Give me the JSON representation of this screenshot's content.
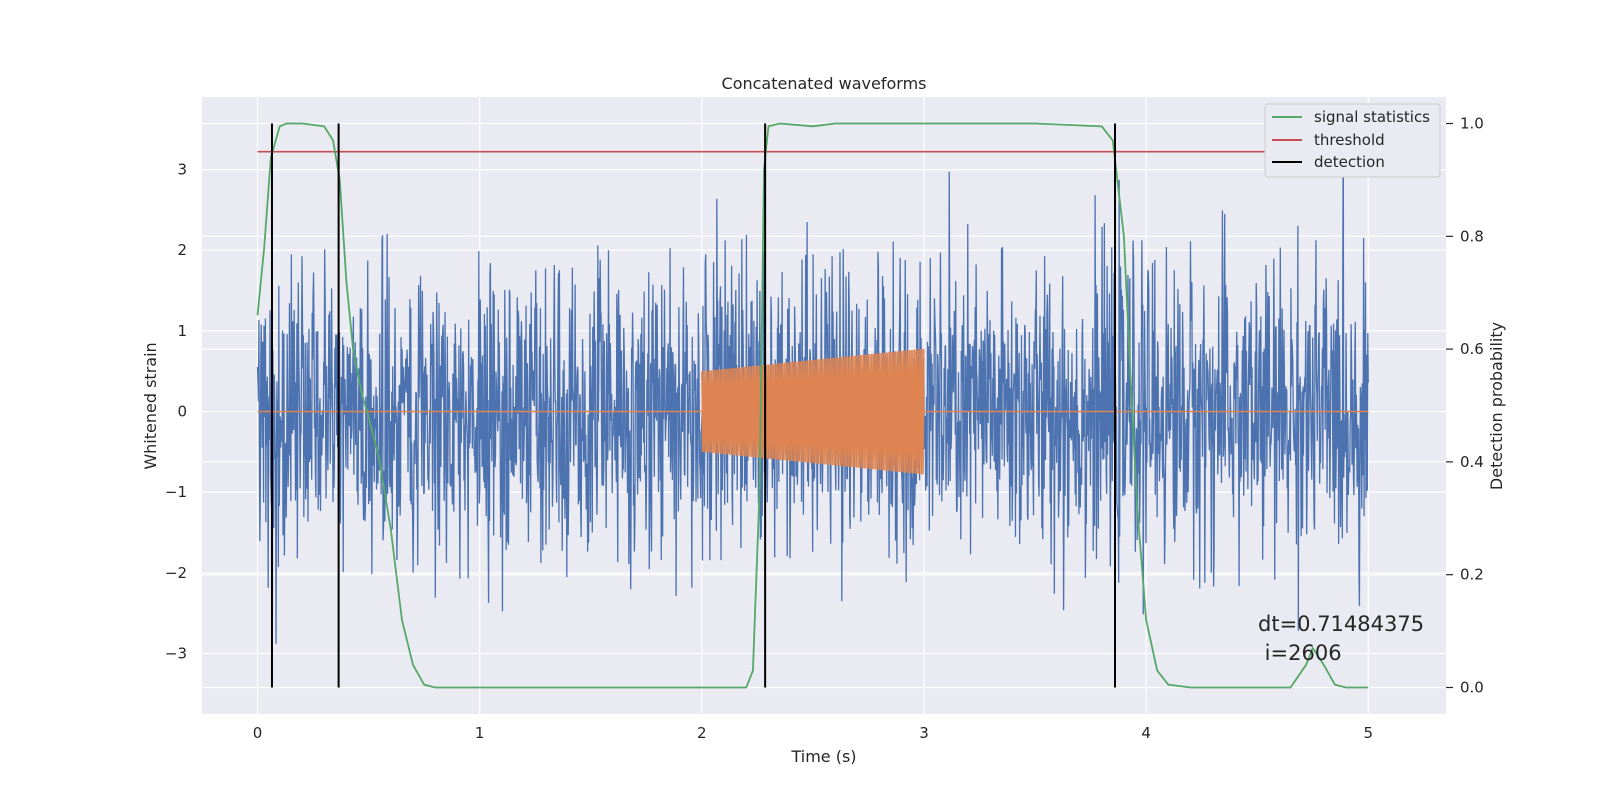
{
  "chart_data": {
    "type": "line",
    "title": "Concatenated waveforms",
    "xlabel": "Time (s)",
    "ylabel": "Whitened strain",
    "y2label": "Detection probability",
    "xlim": [
      -0.25,
      5.35
    ],
    "ylim": [
      -3.75,
      3.9
    ],
    "y2lim": [
      -0.047,
      1.047
    ],
    "xticks": [
      0,
      1,
      2,
      3,
      4,
      5
    ],
    "xtick_labels": [
      "0",
      "1",
      "2",
      "3",
      "4",
      "5"
    ],
    "yticks": [
      -3,
      -2,
      -1,
      0,
      1,
      2,
      3
    ],
    "ytick_labels": [
      "−3",
      "−2",
      "−1",
      "0",
      "1",
      "2",
      "3"
    ],
    "y2ticks": [
      0.0,
      0.2,
      0.4,
      0.6,
      0.8,
      1.0
    ],
    "y2tick_labels": [
      "0.0",
      "0.2",
      "0.4",
      "0.6",
      "0.8",
      "1.0"
    ],
    "grid": true,
    "legend_position": "top-right",
    "series": [
      {
        "name": "",
        "axis": "left",
        "color": "#4c72b0",
        "kind": "noise",
        "x_range": [
          0,
          5
        ],
        "typical_amplitude": 0.9,
        "peak_range": [
          -3.4,
          3.6
        ]
      },
      {
        "name": "",
        "axis": "left",
        "color": "#dd8452",
        "kind": "chirp",
        "x_range": [
          2.0,
          3.0
        ],
        "amplitude_start": 0.5,
        "amplitude_end": 0.78,
        "baseline": 0
      },
      {
        "name": "signal statistics",
        "axis": "right",
        "color": "#55a868",
        "x": [
          0.0,
          0.03,
          0.06,
          0.1,
          0.13,
          0.2,
          0.3,
          0.34,
          0.37,
          0.4,
          0.43,
          0.47,
          0.5,
          0.55,
          0.6,
          0.65,
          0.7,
          0.75,
          0.8,
          1.0,
          1.5,
          2.0,
          2.2,
          2.23,
          2.26,
          2.28,
          2.3,
          2.35,
          2.5,
          2.6,
          3.0,
          3.5,
          3.8,
          3.85,
          3.9,
          3.93,
          3.96,
          4.0,
          4.05,
          4.1,
          4.2,
          4.5,
          4.65,
          4.72,
          4.75,
          4.8,
          4.85,
          4.9,
          5.0
        ],
        "y": [
          0.66,
          0.78,
          0.94,
          0.995,
          1.0,
          1.0,
          0.995,
          0.97,
          0.9,
          0.72,
          0.6,
          0.52,
          0.48,
          0.4,
          0.28,
          0.12,
          0.04,
          0.005,
          0.0,
          0.0,
          0.0,
          0.0,
          0.0,
          0.03,
          0.35,
          0.92,
          0.995,
          1.0,
          0.995,
          1.0,
          1.0,
          1.0,
          0.995,
          0.97,
          0.8,
          0.55,
          0.32,
          0.12,
          0.03,
          0.005,
          0.0,
          0.0,
          0.0,
          0.04,
          0.07,
          0.04,
          0.005,
          0.0,
          0.0
        ]
      },
      {
        "name": "threshold",
        "axis": "right",
        "color": "#c44e52",
        "x": [
          0.0,
          5.0
        ],
        "y": [
          0.95,
          0.95
        ]
      },
      {
        "name": "detection",
        "axis": "right",
        "color": "#000000",
        "kind": "vlines",
        "x": [
          0.065,
          0.365,
          2.285,
          3.86
        ],
        "y_range": [
          0.0,
          1.0
        ]
      }
    ],
    "annotation": {
      "line1": "dt=0.71484375",
      "line2": " i=2606"
    }
  }
}
